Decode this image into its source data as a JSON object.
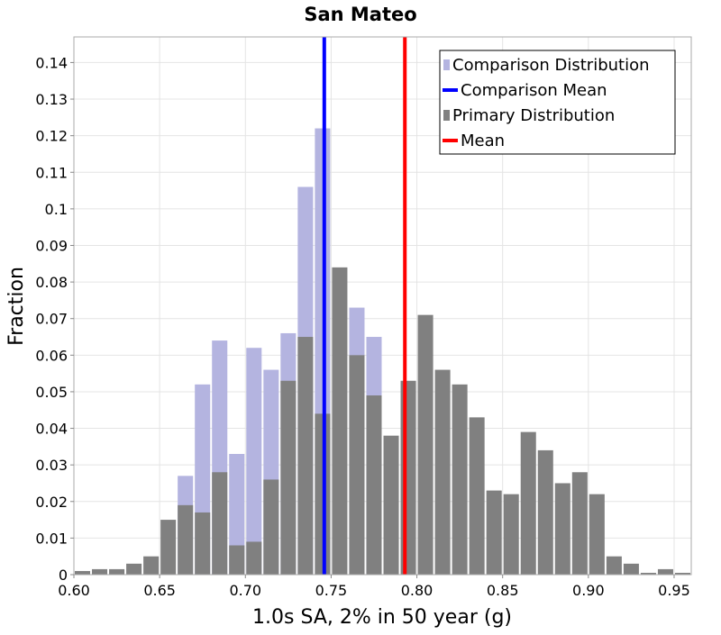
{
  "chart_data": {
    "type": "bar",
    "title": "San Mateo",
    "xlabel": "1.0s SA, 2% in 50 year (g)",
    "ylabel": "Fraction",
    "xlim": [
      0.6,
      0.96
    ],
    "ylim": [
      0,
      0.147
    ],
    "grid": true,
    "bin_width": 0.01,
    "x_ticks": [
      0.6,
      0.65,
      0.7,
      0.75,
      0.8,
      0.85,
      0.9,
      0.95
    ],
    "x_tick_labels": [
      "0.60",
      "0.65",
      "0.70",
      "0.75",
      "0.80",
      "0.85",
      "0.90",
      "0.95"
    ],
    "y_ticks": [
      0,
      0.01,
      0.02,
      0.03,
      0.04,
      0.05,
      0.06,
      0.07,
      0.08,
      0.09,
      0.1,
      0.11,
      0.12,
      0.13,
      0.14
    ],
    "y_tick_labels": [
      "0",
      "0.01",
      "0.02",
      "0.03",
      "0.04",
      "0.05",
      "0.06",
      "0.07",
      "0.08",
      "0.09",
      "0.1",
      "0.11",
      "0.12",
      "0.13",
      "0.14"
    ],
    "legend": {
      "position": "top-right",
      "entries": [
        {
          "label": "Comparison Distribution",
          "kind": "bar",
          "color": "#b4b4e0"
        },
        {
          "label": "Comparison Mean",
          "kind": "line",
          "color": "#0000ff"
        },
        {
          "label": "Primary Distribution",
          "kind": "bar",
          "color": "#808080"
        },
        {
          "label": "Mean",
          "kind": "line",
          "color": "#ff0000"
        }
      ]
    },
    "series": [
      {
        "name": "Comparison Distribution",
        "color": "#b4b4e0",
        "bins": [
          {
            "x": 0.665,
            "y": 0.027
          },
          {
            "x": 0.675,
            "y": 0.052
          },
          {
            "x": 0.685,
            "y": 0.064
          },
          {
            "x": 0.695,
            "y": 0.033
          },
          {
            "x": 0.705,
            "y": 0.062
          },
          {
            "x": 0.715,
            "y": 0.056
          },
          {
            "x": 0.725,
            "y": 0.066
          },
          {
            "x": 0.735,
            "y": 0.106
          },
          {
            "x": 0.745,
            "y": 0.122
          },
          {
            "x": 0.765,
            "y": 0.073
          },
          {
            "x": 0.775,
            "y": 0.065
          }
        ]
      },
      {
        "name": "Primary Distribution",
        "color": "#808080",
        "bins": [
          {
            "x": 0.605,
            "y": 0.001
          },
          {
            "x": 0.615,
            "y": 0.0015
          },
          {
            "x": 0.625,
            "y": 0.0015
          },
          {
            "x": 0.635,
            "y": 0.003
          },
          {
            "x": 0.645,
            "y": 0.005
          },
          {
            "x": 0.655,
            "y": 0.015
          },
          {
            "x": 0.665,
            "y": 0.019
          },
          {
            "x": 0.675,
            "y": 0.017
          },
          {
            "x": 0.685,
            "y": 0.028
          },
          {
            "x": 0.695,
            "y": 0.008
          },
          {
            "x": 0.705,
            "y": 0.009
          },
          {
            "x": 0.715,
            "y": 0.026
          },
          {
            "x": 0.725,
            "y": 0.053
          },
          {
            "x": 0.735,
            "y": 0.065
          },
          {
            "x": 0.745,
            "y": 0.044
          },
          {
            "x": 0.755,
            "y": 0.084
          },
          {
            "x": 0.765,
            "y": 0.06
          },
          {
            "x": 0.775,
            "y": 0.049
          },
          {
            "x": 0.785,
            "y": 0.038
          },
          {
            "x": 0.795,
            "y": 0.053
          },
          {
            "x": 0.805,
            "y": 0.071
          },
          {
            "x": 0.815,
            "y": 0.056
          },
          {
            "x": 0.825,
            "y": 0.052
          },
          {
            "x": 0.835,
            "y": 0.043
          },
          {
            "x": 0.845,
            "y": 0.023
          },
          {
            "x": 0.855,
            "y": 0.022
          },
          {
            "x": 0.865,
            "y": 0.039
          },
          {
            "x": 0.875,
            "y": 0.034
          },
          {
            "x": 0.885,
            "y": 0.025
          },
          {
            "x": 0.895,
            "y": 0.028
          },
          {
            "x": 0.905,
            "y": 0.022
          },
          {
            "x": 0.915,
            "y": 0.005
          },
          {
            "x": 0.925,
            "y": 0.003
          },
          {
            "x": 0.935,
            "y": 0.0005
          },
          {
            "x": 0.945,
            "y": 0.0015
          },
          {
            "x": 0.955,
            "y": 0.0005
          }
        ]
      },
      {
        "name": "Comparison Mean",
        "type": "vline",
        "color": "#0000ff",
        "x": 0.746
      },
      {
        "name": "Mean",
        "type": "vline",
        "color": "#ff0000",
        "x": 0.793
      }
    ]
  }
}
